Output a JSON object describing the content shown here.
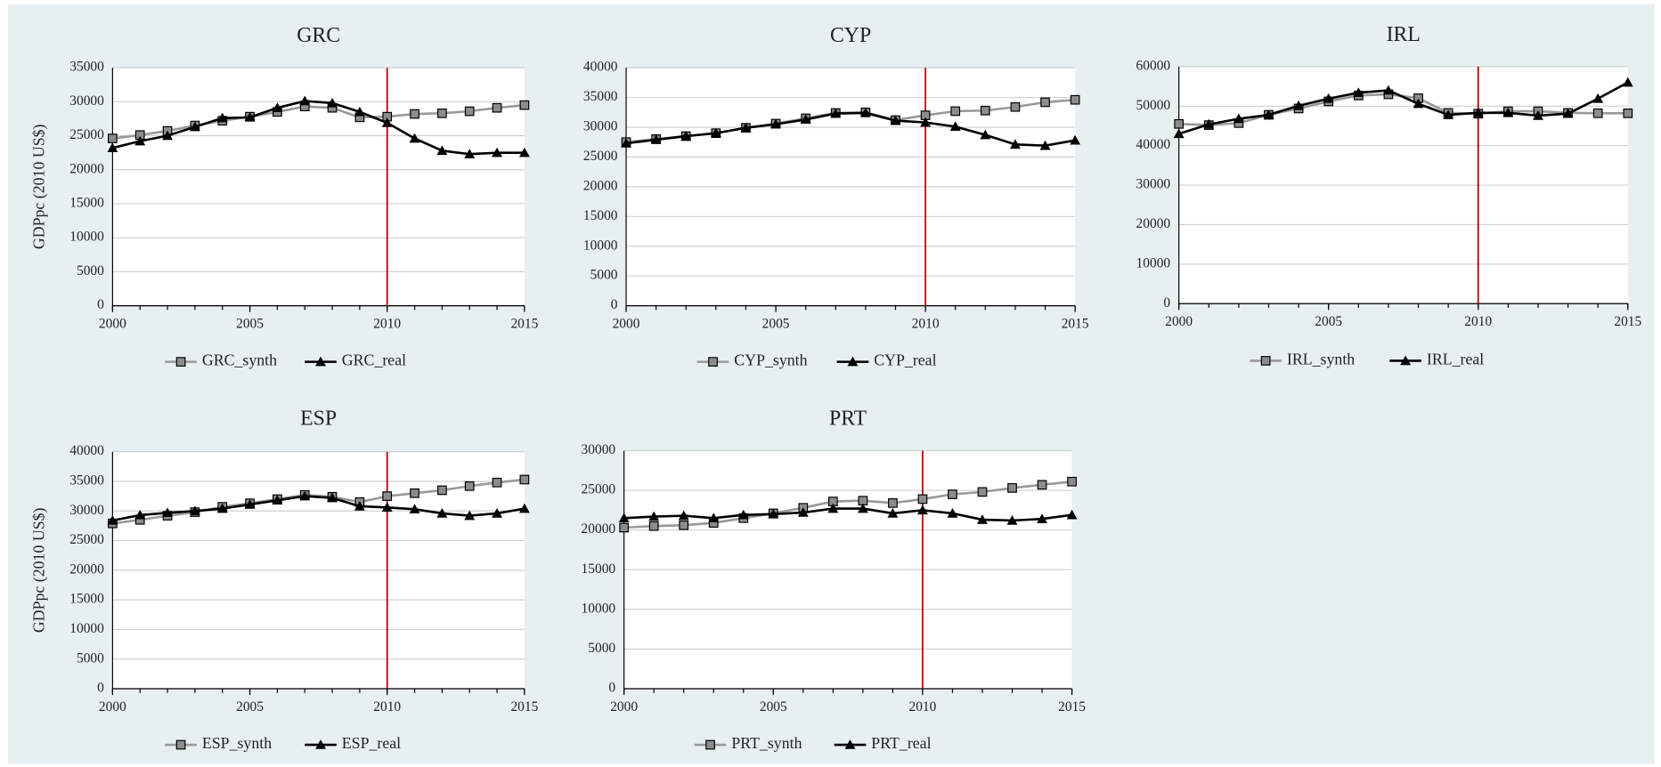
{
  "chart_data": [
    {
      "type": "line",
      "title": "GRC",
      "ylabel": "GDPpc (2010 US$)",
      "x": [
        2000,
        2001,
        2002,
        2003,
        2004,
        2005,
        2006,
        2007,
        2008,
        2009,
        2010,
        2011,
        2012,
        2013,
        2014,
        2015
      ],
      "series": [
        {
          "name": "GRC_synth",
          "color": "#999999",
          "marker": "square",
          "marker_color": "#8c8c8c",
          "values": [
            24600,
            25100,
            25700,
            26500,
            27200,
            27800,
            28500,
            29300,
            29100,
            27700,
            27800,
            28200,
            28300,
            28600,
            29100,
            29500
          ]
        },
        {
          "name": "GRC_real",
          "color": "#000000",
          "marker": "triangle",
          "marker_color": "#000000",
          "values": [
            23200,
            24200,
            25000,
            26300,
            27600,
            27700,
            29100,
            30100,
            29800,
            28500,
            26900,
            24600,
            22800,
            22300,
            22500,
            22500
          ]
        }
      ],
      "xlim": [
        2000,
        2015
      ],
      "xticks": [
        2000,
        2005,
        2010,
        2015
      ],
      "ylim": [
        0,
        35000
      ],
      "yticks": [
        0,
        5000,
        10000,
        15000,
        20000,
        25000,
        30000,
        35000
      ],
      "grid": true,
      "vline": 2010,
      "vline_color": "#c00000"
    },
    {
      "type": "line",
      "title": "CYP",
      "x": [
        2000,
        2001,
        2002,
        2003,
        2004,
        2005,
        2006,
        2007,
        2008,
        2009,
        2010,
        2011,
        2012,
        2013,
        2014,
        2015
      ],
      "series": [
        {
          "name": "CYP_synth",
          "color": "#999999",
          "marker": "square",
          "marker_color": "#8c8c8c",
          "values": [
            27500,
            28000,
            28500,
            29000,
            29900,
            30600,
            31500,
            32400,
            32500,
            31200,
            32000,
            32700,
            32800,
            33400,
            34200,
            34600
          ]
        },
        {
          "name": "CYP_real",
          "color": "#000000",
          "marker": "triangle",
          "marker_color": "#000000",
          "values": [
            27300,
            27900,
            28500,
            29000,
            29900,
            30500,
            31300,
            32300,
            32400,
            31100,
            30800,
            30100,
            28700,
            27100,
            26900,
            27800
          ]
        }
      ],
      "xlim": [
        2000,
        2015
      ],
      "xticks": [
        2000,
        2005,
        2010,
        2015
      ],
      "ylim": [
        0,
        40000
      ],
      "yticks": [
        0,
        5000,
        10000,
        15000,
        20000,
        25000,
        30000,
        35000,
        40000
      ],
      "grid": true,
      "vline": 2010,
      "vline_color": "#c00000"
    },
    {
      "type": "line",
      "title": "IRL",
      "x": [
        2000,
        2001,
        2002,
        2003,
        2004,
        2005,
        2006,
        2007,
        2008,
        2009,
        2010,
        2011,
        2012,
        2013,
        2014,
        2015
      ],
      "series": [
        {
          "name": "IRL_synth",
          "color": "#999999",
          "marker": "square",
          "marker_color": "#8c8c8c",
          "values": [
            45500,
            45200,
            45700,
            47800,
            49400,
            51200,
            52700,
            53000,
            52000,
            48300,
            48100,
            48700,
            48700,
            48300,
            48200,
            48200
          ]
        },
        {
          "name": "IRL_real",
          "color": "#000000",
          "marker": "triangle",
          "marker_color": "#000000",
          "values": [
            43000,
            45400,
            46800,
            47800,
            50100,
            51900,
            53400,
            54000,
            50600,
            47800,
            48300,
            48300,
            47600,
            48100,
            51900,
            56000
          ]
        }
      ],
      "xlim": [
        2000,
        2015
      ],
      "xticks": [
        2000,
        2005,
        2010,
        2015
      ],
      "ylim": [
        0,
        60000
      ],
      "yticks": [
        0,
        10000,
        20000,
        30000,
        40000,
        50000,
        60000
      ],
      "grid": true,
      "vline": 2010,
      "vline_color": "#c00000"
    },
    {
      "type": "line",
      "title": "ESP",
      "ylabel": "GDPpc (2010 US$)",
      "x": [
        2000,
        2001,
        2002,
        2003,
        2004,
        2005,
        2006,
        2007,
        2008,
        2009,
        2010,
        2011,
        2012,
        2013,
        2014,
        2015
      ],
      "series": [
        {
          "name": "ESP_synth",
          "color": "#999999",
          "marker": "square",
          "marker_color": "#8c8c8c",
          "values": [
            27900,
            28500,
            29200,
            29800,
            30700,
            31300,
            32000,
            32700,
            32400,
            31500,
            32500,
            33000,
            33500,
            34200,
            34800,
            35300
          ]
        },
        {
          "name": "ESP_real",
          "color": "#000000",
          "marker": "triangle",
          "marker_color": "#000000",
          "values": [
            28400,
            29300,
            29700,
            30000,
            30400,
            31100,
            31800,
            32500,
            32200,
            30800,
            30600,
            30300,
            29600,
            29200,
            29600,
            30400
          ]
        }
      ],
      "xlim": [
        2000,
        2015
      ],
      "xticks": [
        2000,
        2005,
        2010,
        2015
      ],
      "ylim": [
        0,
        40000
      ],
      "yticks": [
        0,
        5000,
        10000,
        15000,
        20000,
        25000,
        30000,
        35000,
        40000
      ],
      "grid": true,
      "vline": 2010,
      "vline_color": "#c00000"
    },
    {
      "type": "line",
      "title": "PRT",
      "x": [
        2000,
        2001,
        2002,
        2003,
        2004,
        2005,
        2006,
        2007,
        2008,
        2009,
        2010,
        2011,
        2012,
        2013,
        2014,
        2015
      ],
      "series": [
        {
          "name": "PRT_synth",
          "color": "#999999",
          "marker": "square",
          "marker_color": "#8c8c8c",
          "values": [
            20300,
            20500,
            20600,
            20900,
            21500,
            22100,
            22800,
            23600,
            23700,
            23400,
            23900,
            24500,
            24800,
            25300,
            25700,
            26100
          ]
        },
        {
          "name": "PRT_real",
          "color": "#000000",
          "marker": "triangle",
          "marker_color": "#000000",
          "values": [
            21500,
            21700,
            21800,
            21500,
            21900,
            22000,
            22200,
            22700,
            22700,
            22100,
            22500,
            22100,
            21300,
            21200,
            21400,
            21900
          ]
        }
      ],
      "xlim": [
        2000,
        2015
      ],
      "xticks": [
        2000,
        2005,
        2010,
        2015
      ],
      "ylim": [
        0,
        30000
      ],
      "yticks": [
        0,
        5000,
        10000,
        15000,
        20000,
        25000,
        30000
      ],
      "grid": true,
      "vline": 2010,
      "vline_color": "#c00000"
    }
  ]
}
